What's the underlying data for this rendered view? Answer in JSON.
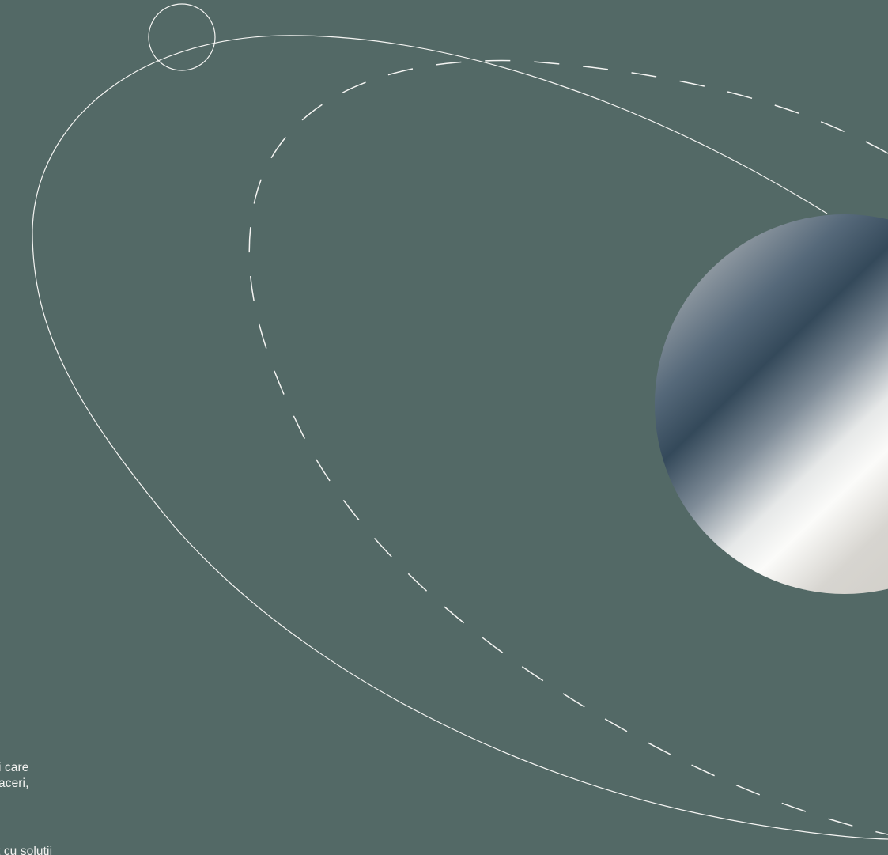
{
  "colors": {
    "background": "#536966",
    "line": "#f4f4f2",
    "sphere_dark": "#34495a",
    "sphere_light": "#fbfbf9",
    "sphere_warm": "#d7d5d0"
  },
  "text_fragments": [
    "i care",
    "aceri,",
    "t cu solutii"
  ]
}
